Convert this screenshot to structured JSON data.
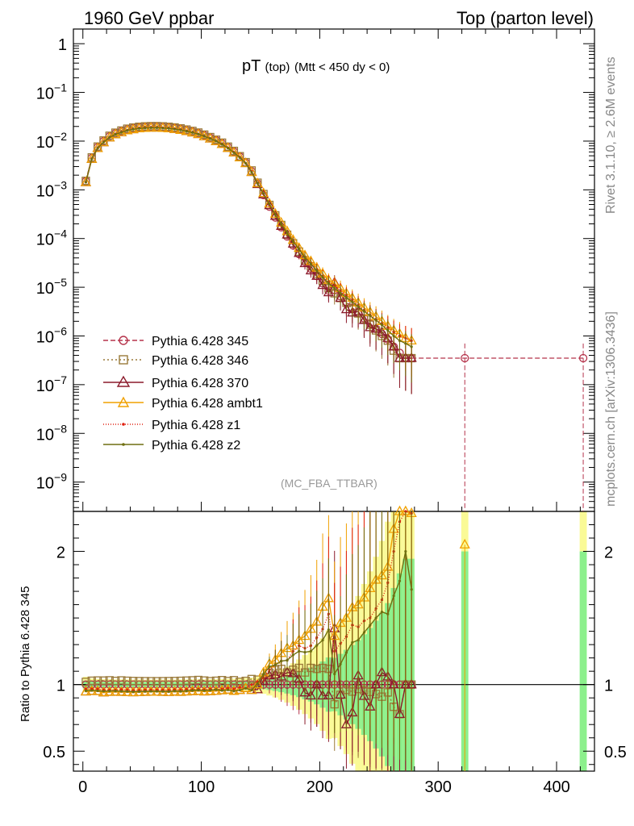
{
  "header": {
    "left": "1960 GeV ppbar",
    "right": "Top (parton level)"
  },
  "side": {
    "rivet": "Rivet 3.1.10, ≥ 2.6M events",
    "mcplots": "mcplots.cern.ch [arXiv:1306.3436]"
  },
  "colors": {
    "p345": "#b5334b",
    "p346": "#9a7a3a",
    "p370": "#8b1a2b",
    "ambt1": "#f0a000",
    "z1": "#e02010",
    "z2": "#6f6f10",
    "band_green": "#8cf08c",
    "band_yellow": "#fafa96"
  },
  "chart_data": [
    {
      "type": "line",
      "title_main": "pT",
      "title_sub": "(top)",
      "title_cut": "(Mtt < 450 dy < 0)",
      "watermark": "(MC_FBA_TTBAR)",
      "xlabel": "",
      "ylabel": "",
      "yscale": "log",
      "xlim": [
        -8,
        432
      ],
      "ylim": [
        2.5e-10,
        2
      ],
      "ytick_labels": [
        {
          "v": 1,
          "t": "1"
        },
        {
          "v": 0.1,
          "base": "10",
          "exp": "−1"
        },
        {
          "v": 0.01,
          "base": "10",
          "exp": "−2"
        },
        {
          "v": 0.001,
          "base": "10",
          "exp": "−3"
        },
        {
          "v": 0.0001,
          "base": "10",
          "exp": "−4"
        },
        {
          "v": 1e-05,
          "base": "10",
          "exp": "−5"
        },
        {
          "v": 1e-06,
          "base": "10",
          "exp": "−6"
        },
        {
          "v": 1e-07,
          "base": "10",
          "exp": "−7"
        },
        {
          "v": 1e-08,
          "base": "10",
          "exp": "−8"
        },
        {
          "v": 1e-09,
          "base": "10",
          "exp": "−9"
        }
      ],
      "x": [
        2.5,
        7.5,
        12.5,
        17.5,
        22.5,
        27.5,
        32.5,
        37.5,
        42.5,
        47.5,
        52.5,
        57.5,
        62.5,
        67.5,
        72.5,
        77.5,
        82.5,
        87.5,
        92.5,
        97.5,
        102.5,
        107.5,
        112.5,
        117.5,
        122.5,
        127.5,
        132.5,
        137.5,
        142.5,
        147.5,
        152.5,
        157.5,
        162.5,
        167.5,
        172.5,
        177.5,
        182.5,
        187.5,
        192.5,
        197.5,
        202.5,
        207.5,
        212.5,
        217.5,
        222.5,
        227.5,
        232.5,
        237.5,
        242.5,
        247.5,
        252.5,
        257.5,
        262.5,
        267.5,
        272.5,
        277.5
      ],
      "series": [
        {
          "name": "Pythia 6.428 345",
          "color_key": "p345",
          "marker": "circle",
          "dash": "6,3",
          "values": [
            0.0015,
            0.0045,
            0.0075,
            0.01,
            0.0125,
            0.0145,
            0.016,
            0.0175,
            0.0185,
            0.0192,
            0.0196,
            0.0198,
            0.0198,
            0.0196,
            0.0192,
            0.0186,
            0.0178,
            0.0168,
            0.0157,
            0.0145,
            0.0132,
            0.0118,
            0.0104,
            0.009,
            0.0075,
            0.0061,
            0.0048,
            0.0036,
            0.0024,
            0.00135,
            0.00078,
            0.00045,
            0.00027,
            0.00017,
            0.00011,
            7.2e-05,
            4.8e-05,
            3.3e-05,
            2.4e-05,
            1.7e-05,
            1.2e-05,
            8.5e-06,
            8.8e-06,
            6.5e-06,
            5e-06,
            3.8e-06,
            3e-06,
            2.3e-06,
            1.8e-06,
            1.4e-06,
            1.1e-06,
            8.5e-07,
            6e-07,
            4.5e-07,
            3.5e-07,
            3.5e-07
          ]
        },
        {
          "name": "Pythia 6.428 346",
          "color_key": "p346",
          "marker": "square",
          "dash": "2,3",
          "values": [
            0.00153,
            0.00463,
            0.00773,
            0.0103,
            0.0129,
            0.0149,
            0.0165,
            0.018,
            0.019,
            0.0197,
            0.0201,
            0.0203,
            0.0203,
            0.0201,
            0.0197,
            0.0191,
            0.0183,
            0.0173,
            0.0162,
            0.015,
            0.0136,
            0.0121,
            0.0107,
            0.0093,
            0.0077,
            0.0063,
            0.0049,
            0.0037,
            0.0025,
            0.0014,
            0.00082,
            0.00049,
            0.0003,
            0.00019,
            0.00012,
            8e-05,
            5.4e-05,
            3.6e-05,
            2.7e-05,
            1.9e-05,
            1.35e-05,
            9.5e-06,
            7.5e-06,
            6e-06,
            4.8e-06,
            3.6e-06,
            2.9e-06,
            2.2e-06,
            1.7e-06,
            1.3e-06,
            1e-06,
            8e-07,
            5e-07,
            3.5e-07,
            3.5e-07,
            3.5e-07
          ]
        },
        {
          "name": "Pythia 6.428 370",
          "color_key": "p370",
          "marker": "triangle",
          "dash": "",
          "values": [
            0.00142,
            0.00428,
            0.00712,
            0.0094,
            0.0118,
            0.0137,
            0.0151,
            0.0165,
            0.0174,
            0.0181,
            0.0185,
            0.0187,
            0.0187,
            0.0185,
            0.0181,
            0.0176,
            0.0168,
            0.0159,
            0.0149,
            0.0138,
            0.0125,
            0.0112,
            0.0099,
            0.0086,
            0.0072,
            0.0058,
            0.0046,
            0.0035,
            0.0023,
            0.0013,
            0.0008,
            0.00048,
            0.00029,
            0.00018,
            0.00012,
            7.8e-05,
            5e-05,
            3.1e-05,
            2.2e-05,
            1.7e-05,
            1.1e-05,
            7.8e-06,
            1.25e-05,
            6e-06,
            3.5e-06,
            3e-06,
            3.2e-06,
            2.1e-06,
            1.5e-06,
            1.4e-06,
            1.2e-06,
            9e-07,
            6e-07,
            3.5e-07,
            3.5e-07,
            3.5e-07
          ]
        },
        {
          "name": "Pythia 6.428 ambt1",
          "color_key": "ambt1",
          "marker": "triangle",
          "dash": "",
          "values": [
            0.00142,
            0.00428,
            0.00712,
            0.0094,
            0.0118,
            0.0137,
            0.0151,
            0.0165,
            0.0174,
            0.0181,
            0.0185,
            0.0187,
            0.0187,
            0.0185,
            0.0181,
            0.0176,
            0.0168,
            0.0159,
            0.0149,
            0.0138,
            0.0125,
            0.0112,
            0.0099,
            0.0086,
            0.0072,
            0.0058,
            0.0046,
            0.0035,
            0.0023,
            0.00135,
            0.00085,
            0.00052,
            0.00032,
            0.00021,
            0.00014,
            9.3e-05,
            6.4e-05,
            4.5e-05,
            3.4e-05,
            2.5e-05,
            1.9e-05,
            1.4e-05,
            1.2e-05,
            9.5e-06,
            7.5e-06,
            6e-06,
            4.8e-06,
            3.8e-06,
            3.1e-06,
            2.5e-06,
            2e-06,
            1.6e-06,
            1.3e-06,
            1.1e-06,
            9e-07,
            8e-07
          ]
        },
        {
          "name": "Pythia 6.428 z1",
          "color_key": "z1",
          "marker": "dot",
          "dash": "1,2",
          "values": [
            0.00145,
            0.00435,
            0.00725,
            0.0096,
            0.012,
            0.0139,
            0.0154,
            0.0168,
            0.0177,
            0.0184,
            0.0188,
            0.019,
            0.019,
            0.0188,
            0.0184,
            0.0179,
            0.0171,
            0.0162,
            0.0151,
            0.014,
            0.0127,
            0.0114,
            0.01,
            0.0087,
            0.0073,
            0.0059,
            0.0047,
            0.0035,
            0.0024,
            0.00138,
            0.00082,
            0.0005,
            0.00031,
            0.0002,
            0.00013,
            9e-05,
            6.2e-05,
            4.2e-05,
            3.1e-05,
            2.3e-05,
            1.7e-05,
            1.3e-05,
            1.1e-05,
            8.5e-06,
            6.8e-06,
            5.5e-06,
            4.3e-06,
            3.4e-06,
            2.7e-06,
            2.2e-06,
            1.8e-06,
            1.5e-06,
            1.2e-06,
            1e-06,
            9e-07,
            8e-07
          ]
        },
        {
          "name": "Pythia 6.428 z2",
          "color_key": "z2",
          "marker": "dot",
          "dash": "",
          "values": [
            0.00143,
            0.0043,
            0.00715,
            0.0095,
            0.0119,
            0.0138,
            0.0152,
            0.0166,
            0.0175,
            0.0182,
            0.0186,
            0.0188,
            0.0188,
            0.0186,
            0.0182,
            0.0177,
            0.0169,
            0.016,
            0.015,
            0.0139,
            0.0126,
            0.0113,
            0.01,
            0.0086,
            0.0072,
            0.0058,
            0.0046,
            0.0035,
            0.0023,
            0.00136,
            0.00084,
            0.00051,
            0.00031,
            0.0002,
            0.00013,
            8.8e-05,
            6e-05,
            4.1e-05,
            3e-05,
            2.2e-05,
            1.6e-05,
            1.2e-05,
            9.5e-06,
            7.5e-06,
            6.2e-06,
            5e-06,
            4e-06,
            3.2e-06,
            2.6e-06,
            2.1e-06,
            1.7e-06,
            1.3e-06,
            1e-06,
            8e-07,
            7e-07,
            6e-07
          ]
        }
      ],
      "tail": {
        "x": [
          322.5,
          422.5
        ],
        "value": 3.5e-07
      }
    },
    {
      "type": "line",
      "ylabel": "Ratio to Pythia 6.428 345",
      "xlim": [
        -8,
        432
      ],
      "ylim": [
        0.35,
        2.3
      ],
      "yticks": [
        0.5,
        1,
        2
      ],
      "ytick_labels": [
        "0.5",
        "1",
        "2"
      ],
      "xticks": [
        0,
        100,
        200,
        300,
        400
      ],
      "xtick_labels": [
        "0",
        "100",
        "200",
        "300",
        "400"
      ],
      "reference": 1
    }
  ]
}
